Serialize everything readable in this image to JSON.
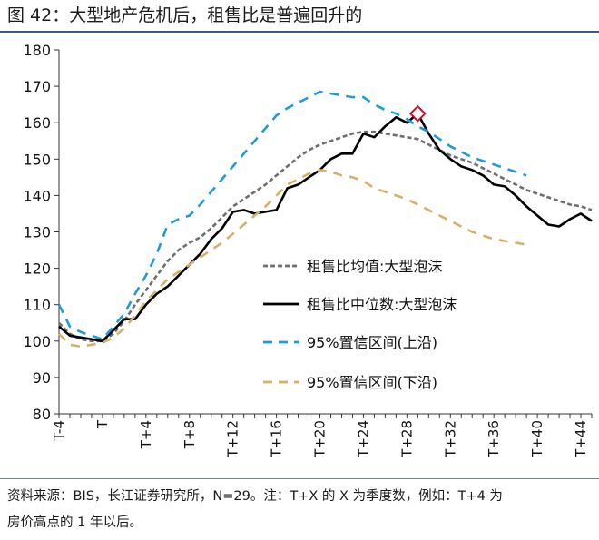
{
  "figure": {
    "title": "图 42：大型地产危机后，租售比是普遍回升的",
    "note_line1": "资料来源：BIS，长江证券研究所，N=29。注：T+X 的 X 为季度数，例如：T+4 为",
    "note_line2": "房价高点的 1 年以后。"
  },
  "chart_data": {
    "type": "line",
    "title": "",
    "xlabel": "",
    "ylabel": "",
    "x_range": [
      -4,
      45
    ],
    "ylim": [
      80,
      180
    ],
    "yticks": [
      80,
      90,
      100,
      110,
      120,
      130,
      140,
      150,
      160,
      170,
      180
    ],
    "xticks": [
      {
        "x": -4,
        "label": "T-4"
      },
      {
        "x": 0,
        "label": "T"
      },
      {
        "x": 4,
        "label": "T+4"
      },
      {
        "x": 8,
        "label": "T+8"
      },
      {
        "x": 12,
        "label": "T+12"
      },
      {
        "x": 16,
        "label": "T+16"
      },
      {
        "x": 20,
        "label": "T+20"
      },
      {
        "x": 24,
        "label": "T+24"
      },
      {
        "x": 28,
        "label": "T+28"
      },
      {
        "x": 32,
        "label": "T+32"
      },
      {
        "x": 36,
        "label": "T+36"
      },
      {
        "x": 40,
        "label": "T+40"
      },
      {
        "x": 44,
        "label": "T+44"
      }
    ],
    "grid": false,
    "legend_position": "right",
    "series": [
      {
        "name": "租售比均值:大型泡沫",
        "style": "dotted",
        "color": "#6e6e6e",
        "points": [
          [
            -4,
            105
          ],
          [
            -3,
            102
          ],
          [
            -2,
            100.5
          ],
          [
            -1,
            100
          ],
          [
            0,
            100
          ],
          [
            1,
            102
          ],
          [
            2,
            105.5
          ],
          [
            3,
            110
          ],
          [
            4,
            114
          ],
          [
            5,
            118
          ],
          [
            6,
            122
          ],
          [
            7,
            125
          ],
          [
            8,
            127
          ],
          [
            9,
            128.5
          ],
          [
            10,
            131
          ],
          [
            11,
            134
          ],
          [
            12,
            137
          ],
          [
            13,
            139
          ],
          [
            14,
            141
          ],
          [
            15,
            143
          ],
          [
            16,
            145.5
          ],
          [
            17,
            148
          ],
          [
            18,
            150.5
          ],
          [
            19,
            152.5
          ],
          [
            20,
            154
          ],
          [
            21,
            155
          ],
          [
            22,
            156
          ],
          [
            23,
            157
          ],
          [
            24,
            157.5
          ],
          [
            25,
            157.5
          ],
          [
            26,
            157
          ],
          [
            27,
            156.5
          ],
          [
            28,
            156
          ],
          [
            29,
            155.5
          ],
          [
            30,
            154
          ],
          [
            31,
            152.5
          ],
          [
            32,
            151
          ],
          [
            33,
            150
          ],
          [
            34,
            149
          ],
          [
            35,
            147.5
          ],
          [
            36,
            146
          ],
          [
            37,
            144.5
          ],
          [
            38,
            143
          ],
          [
            39,
            141.5
          ],
          [
            40,
            140.5
          ],
          [
            41,
            139.5
          ],
          [
            42,
            138.5
          ],
          [
            43,
            137.5
          ],
          [
            44,
            137
          ],
          [
            45,
            136
          ]
        ]
      },
      {
        "name": "租售比中位数:大型泡沫",
        "style": "solid",
        "color": "#000000",
        "points": [
          [
            -4,
            104
          ],
          [
            -3,
            101.5
          ],
          [
            -2,
            101
          ],
          [
            -1,
            100.5
          ],
          [
            0,
            100
          ],
          [
            1,
            103
          ],
          [
            2,
            106
          ],
          [
            3,
            106
          ],
          [
            4,
            110
          ],
          [
            5,
            113
          ],
          [
            6,
            115
          ],
          [
            7,
            118
          ],
          [
            8,
            121
          ],
          [
            9,
            124
          ],
          [
            10,
            128
          ],
          [
            11,
            131
          ],
          [
            12,
            135.5
          ],
          [
            13,
            136
          ],
          [
            14,
            135
          ],
          [
            15,
            135.5
          ],
          [
            16,
            136
          ],
          [
            17,
            142
          ],
          [
            18,
            143
          ],
          [
            19,
            145
          ],
          [
            20,
            147
          ],
          [
            21,
            150
          ],
          [
            22,
            151.5
          ],
          [
            23,
            151.5
          ],
          [
            24,
            157
          ],
          [
            25,
            156
          ],
          [
            26,
            159
          ],
          [
            27,
            161.5
          ],
          [
            28,
            160
          ],
          [
            29,
            162.5
          ],
          [
            30,
            157
          ],
          [
            31,
            152.5
          ],
          [
            32,
            150
          ],
          [
            33,
            148
          ],
          [
            34,
            147
          ],
          [
            35,
            145.5
          ],
          [
            36,
            143
          ],
          [
            37,
            142.5
          ],
          [
            38,
            140
          ],
          [
            39,
            137
          ],
          [
            40,
            134.5
          ],
          [
            41,
            132
          ],
          [
            42,
            131.5
          ],
          [
            43,
            133.5
          ],
          [
            44,
            135
          ],
          [
            45,
            133
          ]
        ]
      },
      {
        "name": "95%置信区间(上沿)",
        "style": "dashed",
        "color": "#1e9bd8",
        "points": [
          [
            -4,
            110
          ],
          [
            -3,
            104
          ],
          [
            -2,
            102.5
          ],
          [
            -1,
            101.5
          ],
          [
            0,
            100.5
          ],
          [
            1,
            104
          ],
          [
            2,
            107.5
          ],
          [
            3,
            113
          ],
          [
            4,
            118
          ],
          [
            5,
            124
          ],
          [
            6,
            132
          ],
          [
            7,
            133.5
          ],
          [
            8,
            134.5
          ],
          [
            9,
            137.5
          ],
          [
            10,
            141
          ],
          [
            11,
            144.5
          ],
          [
            12,
            148
          ],
          [
            13,
            151.5
          ],
          [
            14,
            155
          ],
          [
            15,
            158.5
          ],
          [
            16,
            162
          ],
          [
            17,
            164
          ],
          [
            18,
            165.5
          ],
          [
            19,
            167
          ],
          [
            20,
            168.5
          ],
          [
            21,
            168
          ],
          [
            22,
            167.5
          ],
          [
            23,
            167
          ],
          [
            24,
            167
          ],
          [
            25,
            165
          ],
          [
            26,
            163.5
          ],
          [
            27,
            162.5
          ],
          [
            28,
            161
          ],
          [
            29,
            159
          ],
          [
            30,
            157.5
          ],
          [
            31,
            155.5
          ],
          [
            32,
            153.5
          ],
          [
            33,
            152
          ],
          [
            34,
            150.5
          ],
          [
            35,
            149.5
          ],
          [
            36,
            148.5
          ],
          [
            37,
            147.5
          ],
          [
            38,
            146.5
          ],
          [
            39,
            145.5
          ]
        ]
      },
      {
        "name": "95%置信区间(下沿)",
        "style": "dashed",
        "color": "#d6b06a",
        "points": [
          [
            -4,
            102
          ],
          [
            -3,
            99
          ],
          [
            -2,
            98.5
          ],
          [
            -1,
            99
          ],
          [
            0,
            99.5
          ],
          [
            1,
            101
          ],
          [
            2,
            103.5
          ],
          [
            3,
            107
          ],
          [
            4,
            111
          ],
          [
            5,
            114
          ],
          [
            6,
            117
          ],
          [
            7,
            119
          ],
          [
            8,
            121
          ],
          [
            9,
            123
          ],
          [
            10,
            125
          ],
          [
            11,
            127
          ],
          [
            12,
            129.5
          ],
          [
            13,
            132
          ],
          [
            14,
            134.5
          ],
          [
            15,
            137
          ],
          [
            16,
            140
          ],
          [
            17,
            143
          ],
          [
            18,
            144.5
          ],
          [
            19,
            146
          ],
          [
            20,
            147
          ],
          [
            21,
            146.5
          ],
          [
            22,
            145.5
          ],
          [
            23,
            145
          ],
          [
            24,
            144
          ],
          [
            25,
            142
          ],
          [
            26,
            141
          ],
          [
            27,
            140
          ],
          [
            28,
            139
          ],
          [
            29,
            137.5
          ],
          [
            30,
            136
          ],
          [
            31,
            134.5
          ],
          [
            32,
            133
          ],
          [
            33,
            131.5
          ],
          [
            34,
            130
          ],
          [
            35,
            129
          ],
          [
            36,
            128
          ],
          [
            37,
            127.5
          ],
          [
            38,
            127
          ],
          [
            39,
            126.5
          ]
        ]
      }
    ],
    "marker": {
      "x": 29,
      "y": 162.5,
      "shape": "diamond",
      "color": "#c8102e"
    }
  }
}
